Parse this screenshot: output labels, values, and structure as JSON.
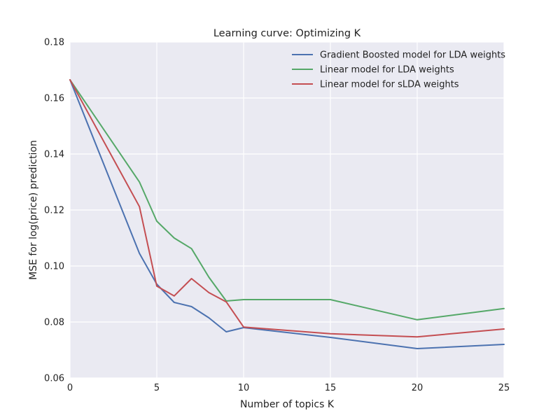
{
  "chart_data": {
    "type": "line",
    "title": "Learning curve: Optimizing K",
    "xlabel": "Number of topics K",
    "ylabel": "MSE for log(price) prediction",
    "xlim": [
      0,
      25
    ],
    "ylim": [
      0.06,
      0.18
    ],
    "xticks": [
      0,
      5,
      10,
      15,
      20,
      25
    ],
    "yticks": [
      0.06,
      0.08,
      0.1,
      0.12,
      0.14,
      0.16,
      0.18
    ],
    "ytick_labels": [
      "0.06",
      "0.08",
      "0.10",
      "0.12",
      "0.14",
      "0.16",
      "0.18"
    ],
    "grid": true,
    "legend_position": "top-right",
    "series": [
      {
        "name": "Gradient Boosted model for LDA weights",
        "color": "#4c72b0",
        "x": [
          0,
          4,
          5,
          6,
          7,
          8,
          9,
          10,
          15,
          20,
          25
        ],
        "y": [
          0.1665,
          0.1045,
          0.0935,
          0.087,
          0.0855,
          0.0815,
          0.0765,
          0.078,
          0.0745,
          0.0705,
          0.072
        ]
      },
      {
        "name": "Linear model for LDA weights",
        "color": "#55a868",
        "x": [
          0,
          4,
          5,
          6,
          7,
          8,
          9,
          10,
          15,
          20,
          25
        ],
        "y": [
          0.1665,
          0.13,
          0.116,
          0.11,
          0.1062,
          0.096,
          0.0875,
          0.088,
          0.088,
          0.0808,
          0.0848
        ]
      },
      {
        "name": "Linear model for sLDA weights",
        "color": "#c44e52",
        "x": [
          0,
          4,
          5,
          6,
          7,
          8,
          9,
          10,
          15,
          20,
          25
        ],
        "y": [
          0.1665,
          0.1212,
          0.0928,
          0.0893,
          0.0955,
          0.0905,
          0.0872,
          0.0782,
          0.0758,
          0.0747,
          0.0775
        ]
      }
    ]
  }
}
